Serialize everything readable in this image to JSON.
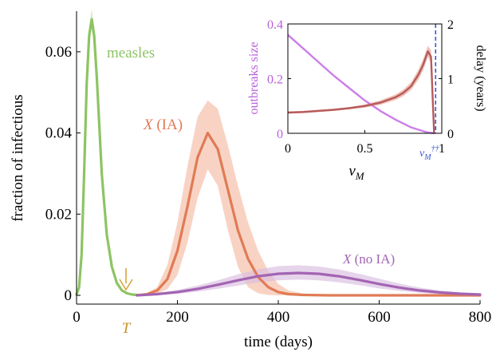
{
  "chart_data": [
    {
      "type": "line",
      "xlabel": "time (days)",
      "ylabel": "fraction of infectious",
      "xlim": [
        0,
        800
      ],
      "ylim": [
        0,
        0.07
      ],
      "xticks": [
        0,
        200,
        400,
        600,
        800
      ],
      "xtick_labels": [
        "0",
        "200",
        "400",
        "600",
        "800"
      ],
      "yticks": [
        0,
        0.02,
        0.04,
        0.06
      ],
      "ytick_labels": [
        "0",
        "0.02",
        "0.04",
        "0.06"
      ],
      "grid": false,
      "annotations": {
        "marker_label": "T",
        "marker_x": 120
      },
      "series": [
        {
          "name": "measles",
          "color": "#8dc463",
          "x": [
            0,
            5,
            10,
            15,
            20,
            25,
            30,
            35,
            40,
            45,
            50,
            60,
            70,
            80,
            90,
            100,
            110,
            120
          ],
          "y": [
            0.0002,
            0.002,
            0.01,
            0.03,
            0.052,
            0.064,
            0.068,
            0.064,
            0.054,
            0.042,
            0.03,
            0.015,
            0.007,
            0.003,
            0.0012,
            0.0005,
            0.0002,
            0.0001
          ],
          "band_upper": [
            0.0003,
            0.003,
            0.011,
            0.032,
            0.054,
            0.066,
            0.0705,
            0.066,
            0.056,
            0.044,
            0.032,
            0.016,
            0.008,
            0.0035,
            0.0014,
            0.0006,
            0.0002,
            0.0001
          ],
          "band_lower": [
            0.0001,
            0.0015,
            0.009,
            0.028,
            0.05,
            0.062,
            0.0655,
            0.062,
            0.052,
            0.04,
            0.028,
            0.014,
            0.006,
            0.0025,
            0.001,
            0.0004,
            0.0001,
            0.0001
          ]
        },
        {
          "name": "X (IA)",
          "color": "#e07b55",
          "band_color": "#f4bca4",
          "x": [
            120,
            140,
            160,
            180,
            200,
            220,
            240,
            260,
            280,
            300,
            320,
            340,
            360,
            380,
            400,
            420,
            450,
            500,
            600,
            700,
            800
          ],
          "y": [
            0,
            0.0003,
            0.0012,
            0.004,
            0.011,
            0.022,
            0.034,
            0.04,
            0.036,
            0.026,
            0.016,
            0.009,
            0.0045,
            0.002,
            0.0008,
            0.0003,
            0.0001,
            0,
            0,
            0,
            0
          ],
          "band_upper": [
            0,
            0.0006,
            0.002,
            0.0075,
            0.018,
            0.032,
            0.044,
            0.048,
            0.046,
            0.037,
            0.027,
            0.018,
            0.011,
            0.006,
            0.0028,
            0.0012,
            0.0004,
            0.0001,
            0,
            0,
            0
          ],
          "band_lower": [
            0,
            0.0001,
            0.0004,
            0.0015,
            0.005,
            0.013,
            0.024,
            0.031,
            0.027,
            0.016,
            0.007,
            0.002,
            0.0005,
            0.0001,
            0,
            0,
            0,
            0,
            0,
            0,
            0
          ]
        },
        {
          "name": "X (no IA)",
          "color": "#a364b3",
          "band_color": "#d9bde0",
          "x": [
            120,
            160,
            200,
            240,
            280,
            320,
            360,
            400,
            440,
            480,
            520,
            560,
            600,
            640,
            680,
            720,
            760,
            800
          ],
          "y": [
            0,
            0.0003,
            0.0008,
            0.0016,
            0.0026,
            0.0037,
            0.0047,
            0.0053,
            0.0055,
            0.0053,
            0.0047,
            0.0038,
            0.0028,
            0.0019,
            0.0012,
            0.0007,
            0.0004,
            0.0002
          ],
          "band_upper": [
            0,
            0.0005,
            0.0013,
            0.0024,
            0.0037,
            0.0052,
            0.0064,
            0.0072,
            0.0074,
            0.0071,
            0.0064,
            0.0053,
            0.0041,
            0.0029,
            0.0019,
            0.0012,
            0.0007,
            0.0004
          ],
          "band_lower": [
            0,
            0.0001,
            0.0004,
            0.0009,
            0.0016,
            0.0024,
            0.0032,
            0.0037,
            0.0039,
            0.0037,
            0.0032,
            0.0025,
            0.0017,
            0.0011,
            0.0006,
            0.0003,
            0.0001,
            0
          ]
        }
      ]
    },
    {
      "type": "line",
      "xlabel": "v_M",
      "ylabel": "outbreaks size",
      "ylabel_right": "delay (years)",
      "xlim": [
        0,
        1
      ],
      "ylim": [
        0,
        0.4
      ],
      "ylim_right": [
        0,
        2
      ],
      "xticks": [
        0,
        0.5,
        1
      ],
      "xtick_labels": [
        "0",
        "0.5",
        "1"
      ],
      "yticks": [
        0,
        0.2,
        0.4
      ],
      "ytick_labels": [
        "0",
        "0.2",
        "0.4"
      ],
      "yticks_right": [
        0,
        1,
        2
      ],
      "ytick_labels_right": [
        "0",
        "1",
        "2"
      ],
      "threshold": {
        "x": 0.96,
        "label": "v_M^††",
        "color": "#3b55d6"
      },
      "series": [
        {
          "axis": "left",
          "color": "#cc7ee8",
          "x": [
            0,
            0.1,
            0.2,
            0.3,
            0.4,
            0.5,
            0.6,
            0.7,
            0.8,
            0.9,
            0.95
          ],
          "y": [
            0.36,
            0.31,
            0.26,
            0.21,
            0.165,
            0.12,
            0.082,
            0.05,
            0.022,
            0.004,
            0
          ]
        },
        {
          "axis": "right",
          "color": "#b85a5a",
          "band_color": "#eab4a8",
          "x": [
            0,
            0.1,
            0.2,
            0.3,
            0.4,
            0.5,
            0.6,
            0.7,
            0.75,
            0.8,
            0.85,
            0.88,
            0.91,
            0.93,
            0.95
          ],
          "y": [
            0.38,
            0.39,
            0.41,
            0.43,
            0.46,
            0.5,
            0.56,
            0.66,
            0.74,
            0.86,
            1.08,
            1.26,
            1.5,
            1.4,
            0
          ],
          "band_upper": [
            0.4,
            0.41,
            0.43,
            0.45,
            0.48,
            0.53,
            0.6,
            0.71,
            0.8,
            0.93,
            1.17,
            1.36,
            1.6,
            1.52,
            0
          ],
          "band_lower": [
            0.36,
            0.37,
            0.39,
            0.41,
            0.44,
            0.47,
            0.52,
            0.61,
            0.68,
            0.79,
            0.99,
            1.16,
            1.4,
            1.28,
            0
          ]
        }
      ]
    }
  ]
}
